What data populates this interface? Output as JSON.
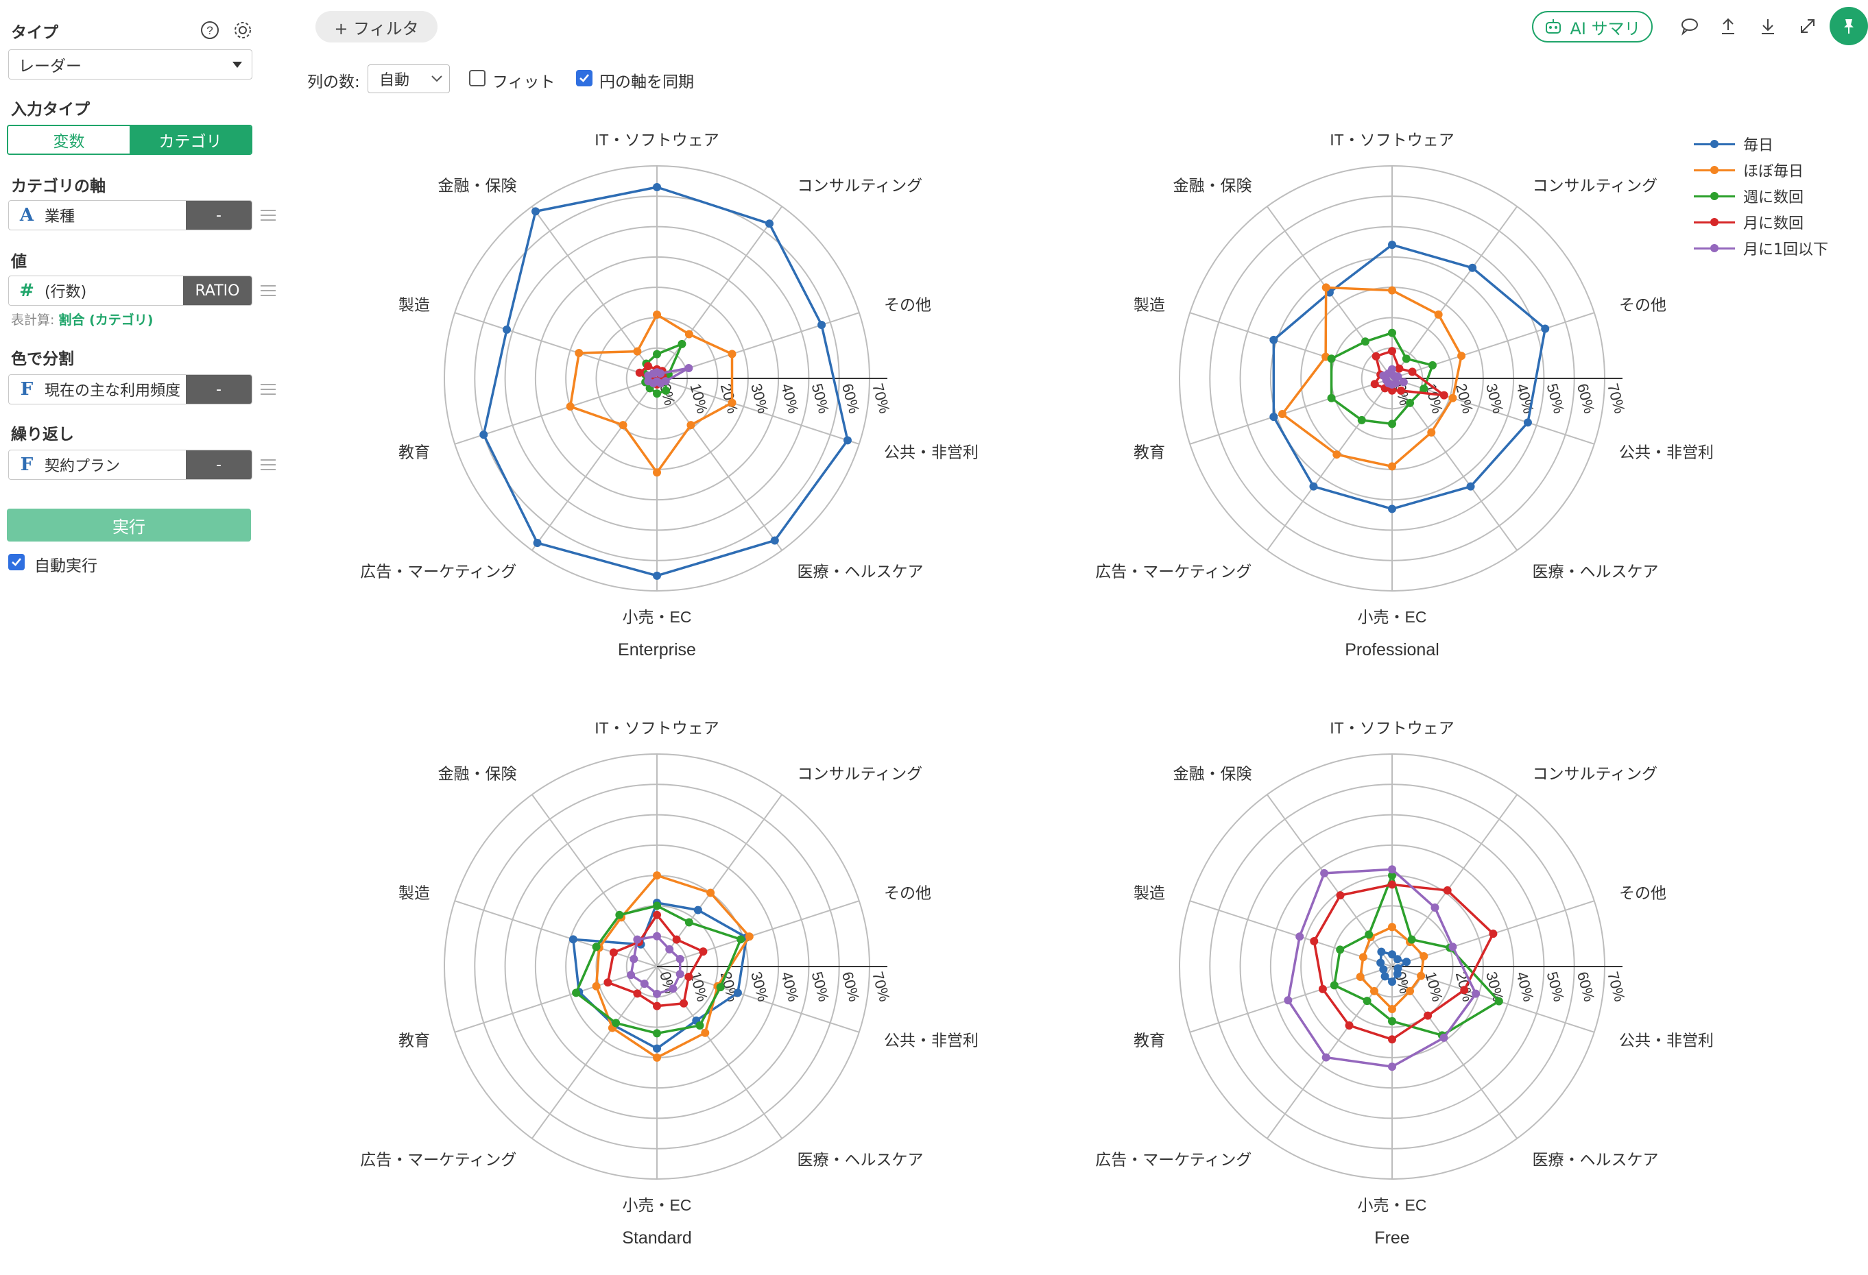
{
  "sidebar": {
    "type_title": "タイプ",
    "type_value": "レーダー",
    "input_type_title": "入力タイプ",
    "input_type_options": [
      "変数",
      "カテゴリ"
    ],
    "category_axis_title": "カテゴリの軸",
    "category_axis_field": {
      "type_icon": "A",
      "name": "業種",
      "agg": "-"
    },
    "value_title": "値",
    "value_field": {
      "type_icon": "#",
      "name": "(行数)",
      "agg": "RATIO"
    },
    "calc_label": "表計算:",
    "calc_value": "割合 (カテゴリ)",
    "color_title": "色で分割",
    "color_field": {
      "type_icon": "F",
      "name": "現在の主な利用頻度",
      "agg": "-"
    },
    "repeat_title": "繰り返し",
    "repeat_field": {
      "type_icon": "F",
      "name": "契約プラン",
      "agg": "-"
    },
    "run_label": "実行",
    "auto_run_label": "自動実行"
  },
  "topbar": {
    "filter_label": "+ フィルタ",
    "columns_label": "列の数:",
    "columns_value": "自動",
    "fit_label": "フィット",
    "sync_label": "円の軸を同期",
    "ai_summary_label": "AI サマリ"
  },
  "colors": {
    "accent": "#1fa56a",
    "series": [
      "#2e6db4",
      "#f5841f",
      "#2ca02c",
      "#d62728",
      "#9467bd"
    ]
  },
  "chart_data": {
    "type": "radar",
    "categories": [
      "IT・ソフトウェア",
      "コンサルティング",
      "その他",
      "公共・非営利",
      "医療・ヘルスケア",
      "小売・EC",
      "広告・マーケティング",
      "教育",
      "製造",
      "金融・保険"
    ],
    "tick_labels": [
      "0%",
      "10%",
      "20%",
      "30%",
      "40%",
      "50%",
      "60%",
      "70%"
    ],
    "range": [
      0,
      70
    ],
    "series_names": [
      "毎日",
      "ほぼ毎日",
      "週に数回",
      "月に数回",
      "月に1回以下"
    ],
    "panels": [
      {
        "title": "Enterprise",
        "series": [
          {
            "name": "毎日",
            "values": [
              63,
              63,
              57,
              66,
              66,
              65,
              67,
              60,
              52,
              68
            ]
          },
          {
            "name": "ほぼ毎日",
            "values": [
              21,
              18,
              26,
              26,
              19,
              31,
              19,
              30,
              27,
              11
            ]
          },
          {
            "name": "週に数回",
            "values": [
              8,
              14,
              4,
              3,
              5,
              5,
              4,
              4,
              4,
              6
            ]
          },
          {
            "name": "月に数回",
            "values": [
              3,
              3,
              2,
              1,
              1,
              2,
              1,
              2,
              6,
              5
            ]
          },
          {
            "name": "月に1回以下",
            "values": [
              2,
              2,
              11,
              3,
              2,
              1,
              2,
              3,
              3,
              2
            ]
          }
        ]
      },
      {
        "title": "Professional",
        "series": [
          {
            "name": "毎日",
            "values": [
              44,
              45,
              53,
              47,
              44,
              43,
              44,
              41,
              41,
              35
            ]
          },
          {
            "name": "ほぼ毎日",
            "values": [
              29,
              26,
              24,
              21,
              22,
              29,
              31,
              38,
              23,
              37
            ]
          },
          {
            "name": "週に数回",
            "values": [
              15,
              8,
              14,
              11,
              10,
              15,
              17,
              21,
              21,
              15
            ]
          },
          {
            "name": "月に数回",
            "values": [
              9,
              4,
              7,
              18,
              5,
              4,
              4,
              6,
              4,
              9
            ]
          },
          {
            "name": "月に1回以下",
            "values": [
              3,
              1,
              2,
              4,
              2,
              2,
              2,
              2,
              3,
              2
            ]
          }
        ]
      },
      {
        "title": "Standard",
        "series": [
          {
            "name": "毎日",
            "values": [
              21,
              23,
              31,
              28,
              22,
              27,
              24,
              27,
              29,
              9
            ]
          },
          {
            "name": "ほぼ毎日",
            "values": [
              30,
              30,
              32,
              21,
              27,
              30,
              25,
              21,
              20,
              20
            ]
          },
          {
            "name": "週に数回",
            "values": [
              20,
              18,
              29,
              22,
              24,
              22,
              23,
              28,
              21,
              21
            ]
          },
          {
            "name": "月に数回",
            "values": [
              17,
              11,
              16,
              11,
              15,
              13,
              11,
              17,
              15,
              10
            ]
          },
          {
            "name": "月に1回以下",
            "values": [
              10,
              7,
              8,
              8,
              9,
              9,
              7,
              9,
              8,
              11
            ]
          }
        ]
      },
      {
        "title": "Free",
        "series": [
          {
            "name": "毎日",
            "values": [
              4,
              3,
              5,
              2,
              3,
              5,
              4,
              3,
              4,
              6
            ]
          },
          {
            "name": "ほぼ毎日",
            "values": [
              13,
              10,
              11,
              10,
              10,
              14,
              10,
              11,
              10,
              12
            ]
          },
          {
            "name": "週に数回",
            "values": [
              30,
              11,
              20,
              37,
              28,
              18,
              14,
              20,
              18,
              13
            ]
          },
          {
            "name": "月に数回",
            "values": [
              27,
              31,
              35,
              25,
              20,
              24,
              24,
              24,
              27,
              29
            ]
          },
          {
            "name": "月に1回以下",
            "values": [
              32,
              24,
              21,
              29,
              29,
              33,
              37,
              36,
              32,
              38
            ]
          }
        ]
      }
    ]
  }
}
